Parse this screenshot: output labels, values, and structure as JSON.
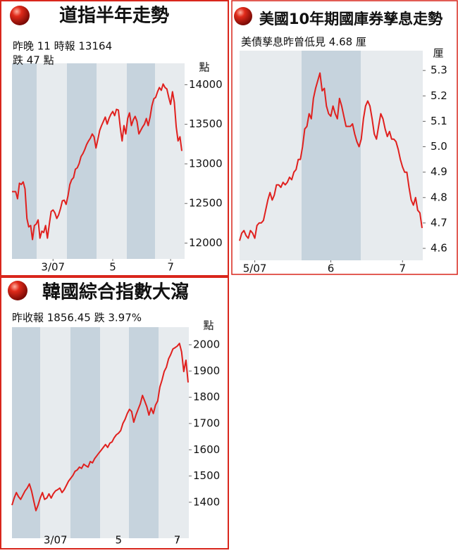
{
  "chart_data": [
    {
      "type": "line",
      "title": "道指半年走勢",
      "subtitle": [
        "昨晚 11 時報 13164",
        "跌 47 點"
      ],
      "y_label": "點",
      "color": "#e0201e",
      "values": [
        12649,
        12649,
        12649,
        12560,
        12756,
        12740,
        12773,
        12684,
        12311,
        12204,
        12222,
        12044,
        12222,
        12240,
        12293,
        12062,
        12151,
        12133,
        12222,
        12062,
        12240,
        12400,
        12418,
        12382,
        12311,
        12356,
        12436,
        12533,
        12542,
        12489,
        12596,
        12738,
        12800,
        12827,
        12933,
        12951,
        13004,
        13093,
        13129,
        13182,
        13244,
        13289,
        13324,
        13378,
        13342,
        13200,
        13307,
        13422,
        13484,
        13538,
        13591,
        13502,
        13573,
        13627,
        13662,
        13609,
        13689,
        13680,
        13467,
        13289,
        13484,
        13378,
        13573,
        13644,
        13484,
        13556,
        13600,
        13538,
        13378,
        13422,
        13467,
        13502,
        13573,
        13484,
        13591,
        13733,
        13822,
        13840,
        13911,
        13964,
        13929,
        14009,
        13964,
        13947,
        13840,
        13751,
        13911,
        13778,
        13467,
        13289,
        13342,
        13164
      ],
      "xticks": [
        {
          "value": 22,
          "label": "3/07"
        },
        {
          "value": 54,
          "label": "5"
        },
        {
          "value": 85,
          "label": "7"
        }
      ],
      "ylim": [
        11800,
        14270
      ],
      "yticks": [
        12000,
        12500,
        13000,
        13500,
        14000
      ]
    },
    {
      "type": "line",
      "title": "美國10年期國庫券孳息走勢",
      "subtitle": [
        "美債孳息昨曾低見 4.68 厘"
      ],
      "y_label": "厘",
      "color": "#e0201e",
      "values": [
        4.63,
        4.66,
        4.67,
        4.65,
        4.64,
        4.67,
        4.66,
        4.64,
        4.69,
        4.7,
        4.7,
        4.71,
        4.75,
        4.79,
        4.82,
        4.79,
        4.81,
        4.85,
        4.85,
        4.84,
        4.86,
        4.85,
        4.86,
        4.88,
        4.87,
        4.9,
        4.91,
        4.95,
        4.95,
        5.0,
        5.07,
        5.08,
        5.13,
        5.11,
        5.19,
        5.23,
        5.26,
        5.29,
        5.22,
        5.23,
        5.16,
        5.13,
        5.12,
        5.16,
        5.13,
        5.11,
        5.19,
        5.16,
        5.12,
        5.08,
        5.08,
        5.08,
        5.09,
        5.05,
        5.02,
        5.0,
        5.03,
        5.11,
        5.16,
        5.18,
        5.16,
        5.11,
        5.05,
        5.03,
        5.08,
        5.13,
        5.11,
        5.07,
        5.04,
        5.06,
        5.03,
        5.03,
        5.02,
        4.99,
        4.95,
        4.92,
        4.9,
        4.9,
        4.84,
        4.79,
        4.77,
        4.8,
        4.75,
        4.74,
        4.68
      ],
      "xticks": [
        {
          "value": 7,
          "label": "5/07"
        },
        {
          "value": 42,
          "label": "6"
        },
        {
          "value": 75,
          "label": "7"
        }
      ],
      "ylim": [
        4.553,
        5.378
      ],
      "yticks": [
        4.6,
        4.7,
        4.8,
        4.9,
        {
          "value": 5,
          "label": "5.0"
        },
        5.1,
        5.2,
        5.3
      ]
    },
    {
      "type": "line",
      "title": "韓國綜合指數大瀉",
      "subtitle": [
        "昨收報 1856.45  跌 3.97%"
      ],
      "y_label": "點",
      "color": "#e0201e",
      "values": [
        1389,
        1416,
        1437,
        1421,
        1411,
        1427,
        1443,
        1454,
        1470,
        1443,
        1405,
        1368,
        1389,
        1416,
        1437,
        1411,
        1416,
        1432,
        1416,
        1432,
        1443,
        1448,
        1454,
        1437,
        1448,
        1464,
        1480,
        1491,
        1502,
        1518,
        1523,
        1534,
        1529,
        1545,
        1539,
        1534,
        1555,
        1550,
        1566,
        1577,
        1588,
        1598,
        1609,
        1620,
        1609,
        1625,
        1630,
        1646,
        1657,
        1663,
        1673,
        1700,
        1716,
        1738,
        1754,
        1746,
        1705,
        1732,
        1754,
        1775,
        1807,
        1786,
        1764,
        1732,
        1759,
        1738,
        1770,
        1786,
        1839,
        1866,
        1898,
        1914,
        1946,
        1963,
        1984,
        1989,
        1995,
        2005,
        1973,
        1898,
        1941,
        1856.45
      ],
      "xticks": [
        {
          "value": 20,
          "label": "3/07"
        },
        {
          "value": 49,
          "label": "5"
        },
        {
          "value": 76,
          "label": "7"
        }
      ],
      "ylim": [
        1263,
        2067
      ],
      "yticks": [
        1400,
        1500,
        1600,
        1700,
        1800,
        1900,
        2000
      ]
    }
  ]
}
